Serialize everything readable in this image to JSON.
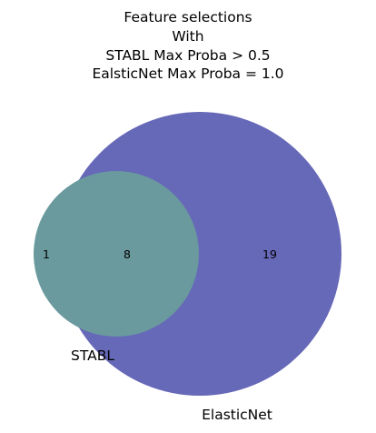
{
  "title": {
    "lines": [
      "Feature selections",
      "With",
      "STABL Max Proba > 0.5",
      "EalsticNet Max Proba = 1.0"
    ]
  },
  "venn": {
    "sets": [
      {
        "name": "STABL",
        "color": "#6ab36a"
      },
      {
        "name": "ElasticNet",
        "color": "#6668b8"
      }
    ],
    "overlap_color": "#6a9a9e",
    "counts": {
      "stabl_only": "1",
      "both": "8",
      "elasticnet_only": "19"
    }
  }
}
